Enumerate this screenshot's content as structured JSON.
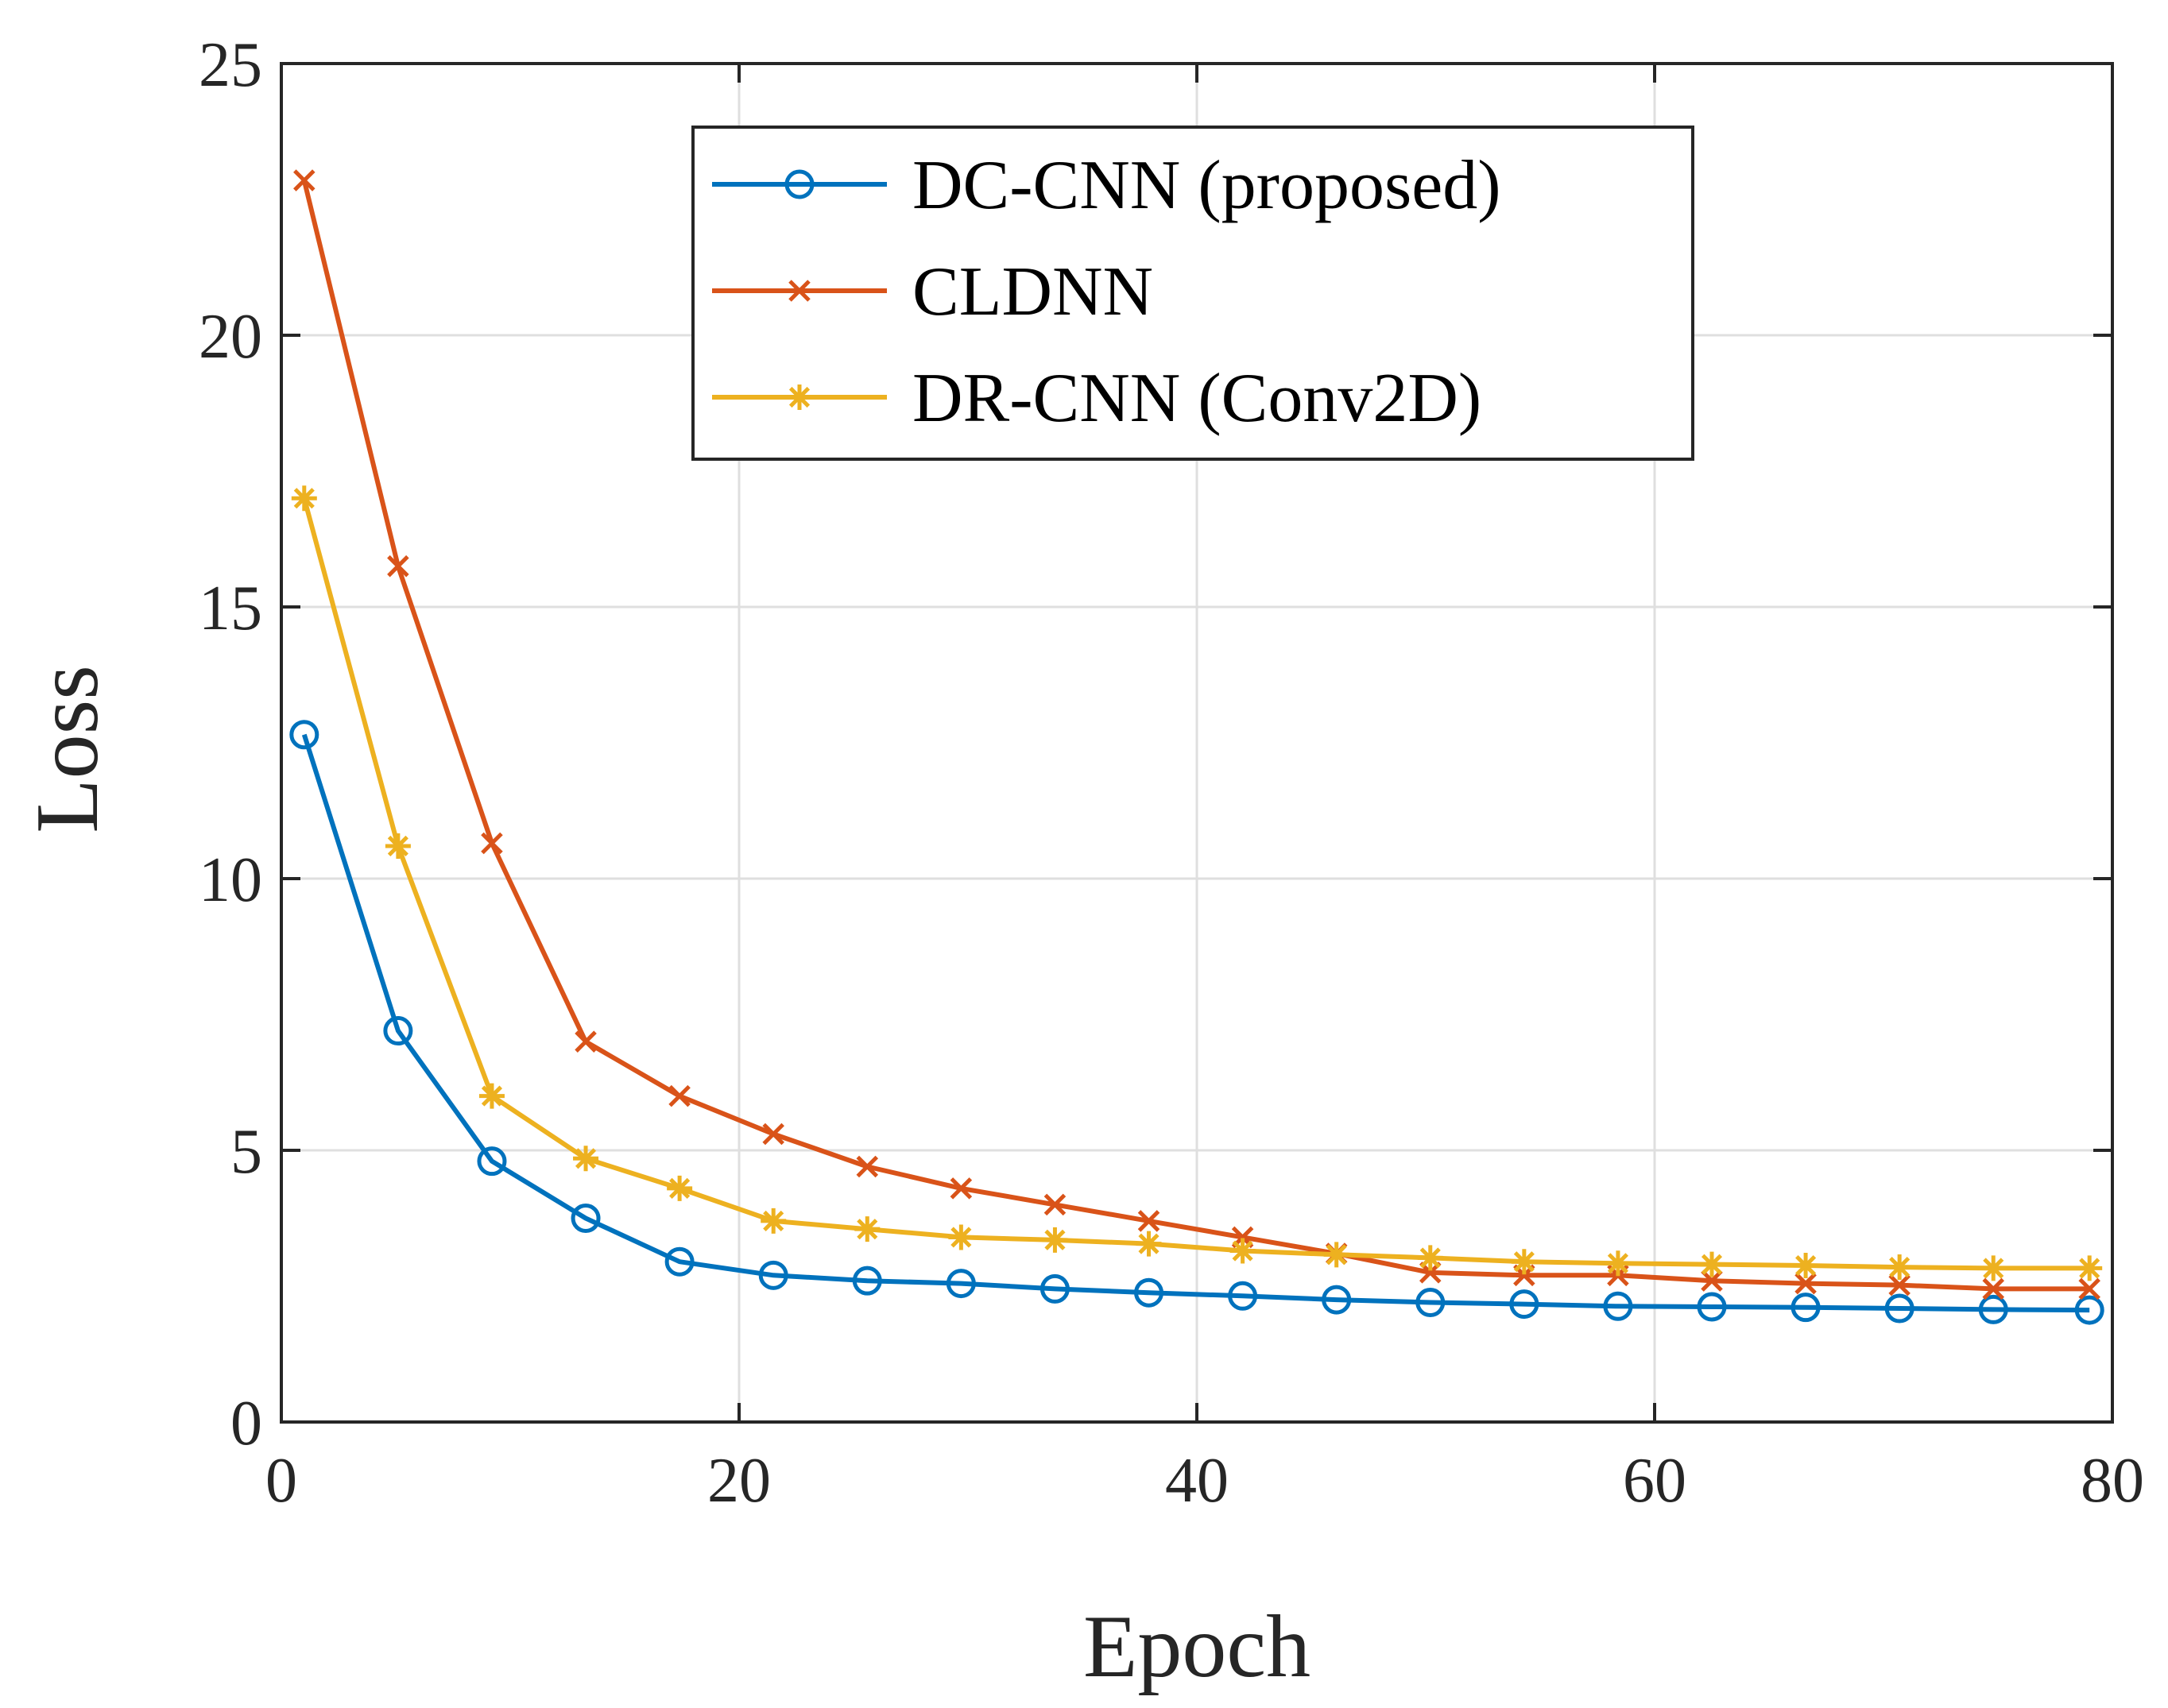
{
  "chart_data": {
    "type": "line",
    "title": "",
    "xlabel": "Epoch",
    "ylabel": "Loss",
    "xlim": [
      0,
      80
    ],
    "ylim": [
      0,
      25
    ],
    "xticks": [
      0,
      20,
      40,
      60,
      80
    ],
    "yticks": [
      0,
      5,
      10,
      15,
      20,
      25
    ],
    "grid": true,
    "legend_position": "top-center",
    "x": [
      1,
      5.1,
      9.2,
      13.3,
      17.4,
      21.5,
      25.6,
      29.7,
      33.8,
      37.9,
      42,
      46.1,
      50.2,
      54.3,
      58.4,
      62.5,
      66.6,
      70.7,
      74.8,
      79
    ],
    "series": [
      {
        "name": "DC-CNN (proposed)",
        "color": "#0072BD",
        "marker": "circle",
        "values": [
          12.65,
          7.2,
          4.8,
          3.75,
          2.95,
          2.7,
          2.6,
          2.55,
          2.45,
          2.38,
          2.32,
          2.25,
          2.2,
          2.17,
          2.13,
          2.12,
          2.11,
          2.09,
          2.07,
          2.06
        ]
      },
      {
        "name": "CLDNN",
        "color": "#D95319",
        "marker": "x",
        "values": [
          22.85,
          15.75,
          10.65,
          7.0,
          6.0,
          5.3,
          4.7,
          4.3,
          4.0,
          3.7,
          3.4,
          3.1,
          2.75,
          2.7,
          2.7,
          2.6,
          2.55,
          2.52,
          2.45,
          2.45
        ]
      },
      {
        "name": "DR-CNN (Conv2D)",
        "color": "#EDB120",
        "marker": "asterisk",
        "values": [
          17.0,
          10.6,
          6.0,
          4.85,
          4.3,
          3.7,
          3.55,
          3.4,
          3.35,
          3.28,
          3.15,
          3.08,
          3.02,
          2.95,
          2.92,
          2.9,
          2.88,
          2.85,
          2.83,
          2.83
        ]
      }
    ]
  }
}
